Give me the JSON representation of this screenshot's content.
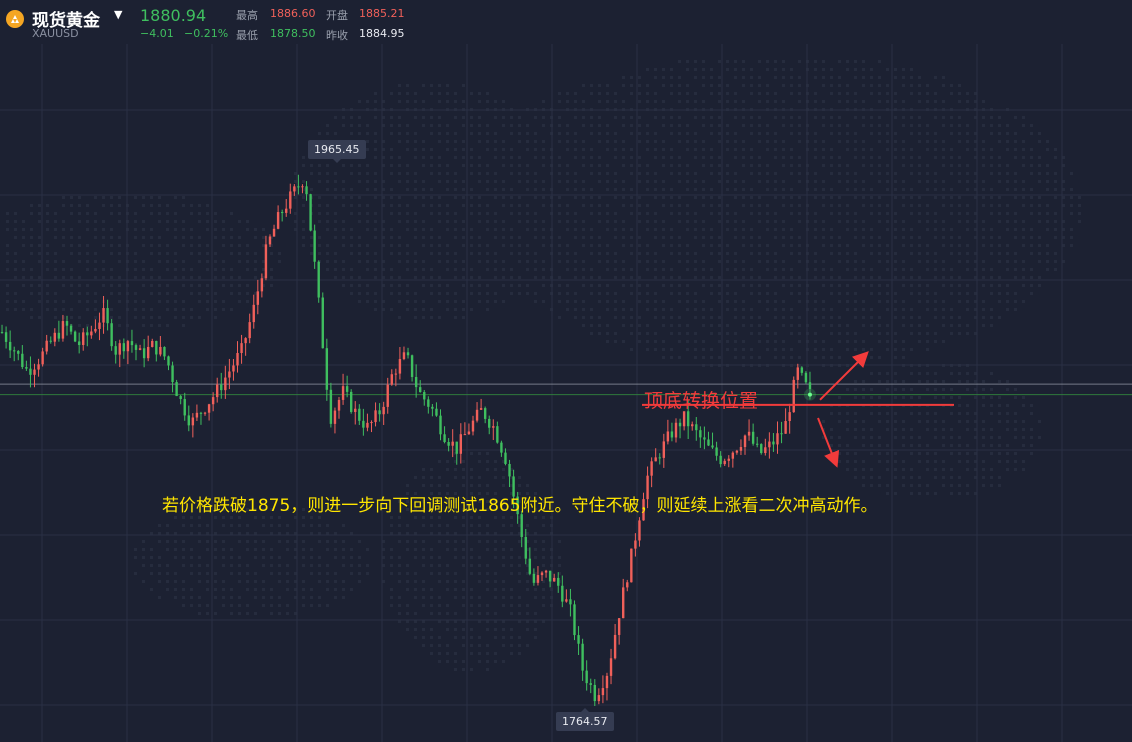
{
  "header": {
    "name": "现货黄金",
    "symbol": "XAUUSD",
    "price": "1880.94",
    "change": "−4.01",
    "change_pct": "−0.21%",
    "high_label": "最高",
    "high_value": "1886.60",
    "open_label": "开盘",
    "open_value": "1885.21",
    "low_label": "最低",
    "low_value": "1878.50",
    "prev_close_label": "昨收",
    "prev_close_value": "1884.95"
  },
  "annotations": {
    "level_text": "顶底转换位置",
    "comment": "若价格跌破1875，则进一步向下回调测试1865附近。守住不破，则延续上涨看二次冲高动作。"
  },
  "colors": {
    "background": "#1c2132",
    "up": "#f0605a",
    "down": "#3fbf5f",
    "annotation_red": "#f23b3b",
    "annotation_yellow": "#ffe600"
  },
  "chart_data": {
    "type": "candlestick",
    "symbol": "XAUUSD",
    "max_label": "1965.45",
    "min_label": "1764.57",
    "max_value": 1965.45,
    "min_value": 1764.57,
    "last_price": 1880.94,
    "prev_close": 1884.95,
    "key_level": 1877,
    "grid": true,
    "close_path": [
      1905,
      1898,
      1890,
      1895,
      1902,
      1908,
      1900,
      1905,
      1912,
      1898,
      1902,
      1896,
      1900,
      1895,
      1880,
      1870,
      1876,
      1882,
      1890,
      1898,
      1915,
      1938,
      1950,
      1958,
      1965,
      1920,
      1872,
      1882,
      1874,
      1868,
      1875,
      1890,
      1896,
      1882,
      1876,
      1866,
      1860,
      1868,
      1875,
      1868,
      1855,
      1830,
      1808,
      1812,
      1808,
      1798,
      1775,
      1765,
      1775,
      1800,
      1822,
      1848,
      1858,
      1866,
      1872,
      1866,
      1860,
      1856,
      1860,
      1866,
      1858,
      1862,
      1868,
      1890,
      1881
    ]
  }
}
